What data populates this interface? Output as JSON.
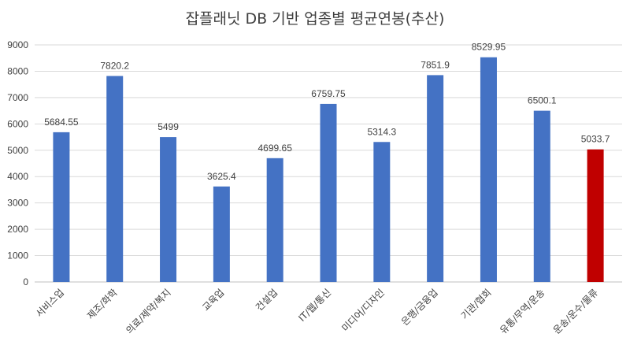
{
  "chart_data": {
    "type": "bar",
    "title": "잡플래닛 DB 기반 업종별 평균연봉(추산)",
    "xlabel": "",
    "ylabel": "",
    "categories": [
      "서비스업",
      "제조/화학",
      "의료/제약/복지",
      "교육업",
      "건설업",
      "IT/웹/통신",
      "미디어/디자인",
      "은행/금융업",
      "기관/협회",
      "유통/무역/운송",
      "운송/운수/물류"
    ],
    "values": [
      5684.55,
      7820.2,
      5499,
      3625.4,
      4699.65,
      6759.75,
      5314.3,
      7851.9,
      8529.95,
      6500.1,
      5033.7
    ],
    "data_labels": [
      "5684.55",
      "7820.2",
      "5499",
      "3625.4",
      "4699.65",
      "6759.75",
      "5314.3",
      "7851.9",
      "8529.95",
      "6500.1",
      "5033.7"
    ],
    "ylim": [
      0,
      9000
    ],
    "yticks": [
      "0",
      "1000",
      "2000",
      "3000",
      "4000",
      "5000",
      "6000",
      "7000",
      "8000",
      "9000"
    ],
    "grid": true,
    "legend": "none",
    "colors": {
      "bar": "#4472c4",
      "highlight": "#c00000",
      "highlight_index": 10,
      "grid": "#d9d9d9",
      "text": "#404040"
    }
  }
}
